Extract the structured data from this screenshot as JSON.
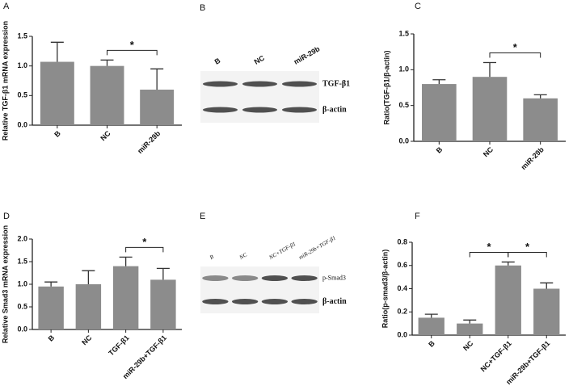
{
  "chart_data": [
    {
      "type": "bar",
      "panel_label": "A",
      "y_label": "Relative TGF-β1 mRNA expression",
      "color": "#8c8c8c",
      "categories": [
        "B",
        "NC",
        "miR-29b"
      ],
      "values": [
        1.07,
        1.0,
        0.6
      ],
      "errors": [
        0.33,
        0.1,
        0.35
      ],
      "ylim": [
        0,
        1.5
      ],
      "yticks": [
        {
          "value": 0,
          "label": "0.0"
        },
        {
          "value": 0.5,
          "label": "0.5"
        },
        {
          "value": 1,
          "label": "1.0"
        },
        {
          "value": 1.5,
          "label": "1.5"
        }
      ],
      "significance": [
        {
          "between": [
            "NC",
            "miR-29b"
          ],
          "label": "*"
        }
      ]
    },
    {
      "type": "bar",
      "panel_label": "C",
      "y_label": "Ratio(TGF-β1/β-actin)",
      "color": "#8c8c8c",
      "categories": [
        "B",
        "NC",
        "miR-29b"
      ],
      "values": [
        0.8,
        0.9,
        0.6
      ],
      "errors": [
        0.06,
        0.2,
        0.05
      ],
      "ylim": [
        0,
        1.5
      ],
      "yticks": [
        {
          "value": 0,
          "label": "0.0"
        },
        {
          "value": 0.5,
          "label": "0.5"
        },
        {
          "value": 1,
          "label": "1.0"
        },
        {
          "value": 1.5,
          "label": "1.5"
        }
      ],
      "significance": [
        {
          "between": [
            "NC",
            "miR-29b"
          ],
          "label": "*"
        }
      ]
    },
    {
      "type": "bar",
      "panel_label": "D",
      "y_label": "Relative Smad3 mRNA expression",
      "color": "#8c8c8c",
      "categories": [
        "B",
        "NC",
        "TGF-β1",
        "miR-29b+TGF-β1"
      ],
      "values": [
        0.95,
        1.0,
        1.4,
        1.1
      ],
      "errors": [
        0.1,
        0.3,
        0.2,
        0.25
      ],
      "ylim": [
        0,
        2
      ],
      "yticks": [
        {
          "value": 0,
          "label": "0.0"
        },
        {
          "value": 0.5,
          "label": "0.5"
        },
        {
          "value": 1,
          "label": "1.0"
        },
        {
          "value": 1.5,
          "label": "1.5"
        },
        {
          "value": 2,
          "label": "2.0"
        }
      ],
      "significance": [
        {
          "between": [
            "TGF-β1",
            "miR-29b+TGF-β1"
          ],
          "label": "*"
        }
      ]
    },
    {
      "type": "bar",
      "panel_label": "F",
      "y_label": "Ratio(p-smad3/β-actin)",
      "color": "#8c8c8c",
      "categories": [
        "B",
        "NC",
        "NC+TGF-β1",
        "miR-29b+TGF-β1"
      ],
      "values": [
        0.15,
        0.1,
        0.6,
        0.4
      ],
      "errors": [
        0.03,
        0.03,
        0.03,
        0.05
      ],
      "ylim": [
        0,
        0.8
      ],
      "yticks": [
        {
          "value": 0,
          "label": "0.0"
        },
        {
          "value": 0.2,
          "label": "0.2"
        },
        {
          "value": 0.4,
          "label": "0.4"
        },
        {
          "value": 0.6,
          "label": "0.6"
        },
        {
          "value": 0.8,
          "label": "0.8"
        }
      ],
      "significance": [
        {
          "between": [
            "NC",
            "NC+TGF-β1"
          ],
          "label": "*"
        },
        {
          "between": [
            "NC+TGF-β1",
            "miR-29b+TGF-β1"
          ],
          "label": "*"
        }
      ]
    }
  ],
  "blots": [
    {
      "panel_label": "B",
      "lanes": [
        "B",
        "NC",
        "miR-29b"
      ],
      "bands": [
        "TGF-β1",
        "β-actin"
      ]
    },
    {
      "panel_label": "E",
      "lanes": [
        "B",
        "NC",
        "NC+TGF-β1",
        "miR-29b+TGF-β1"
      ],
      "bands": [
        "p-Smad3",
        "β-actin"
      ]
    }
  ]
}
